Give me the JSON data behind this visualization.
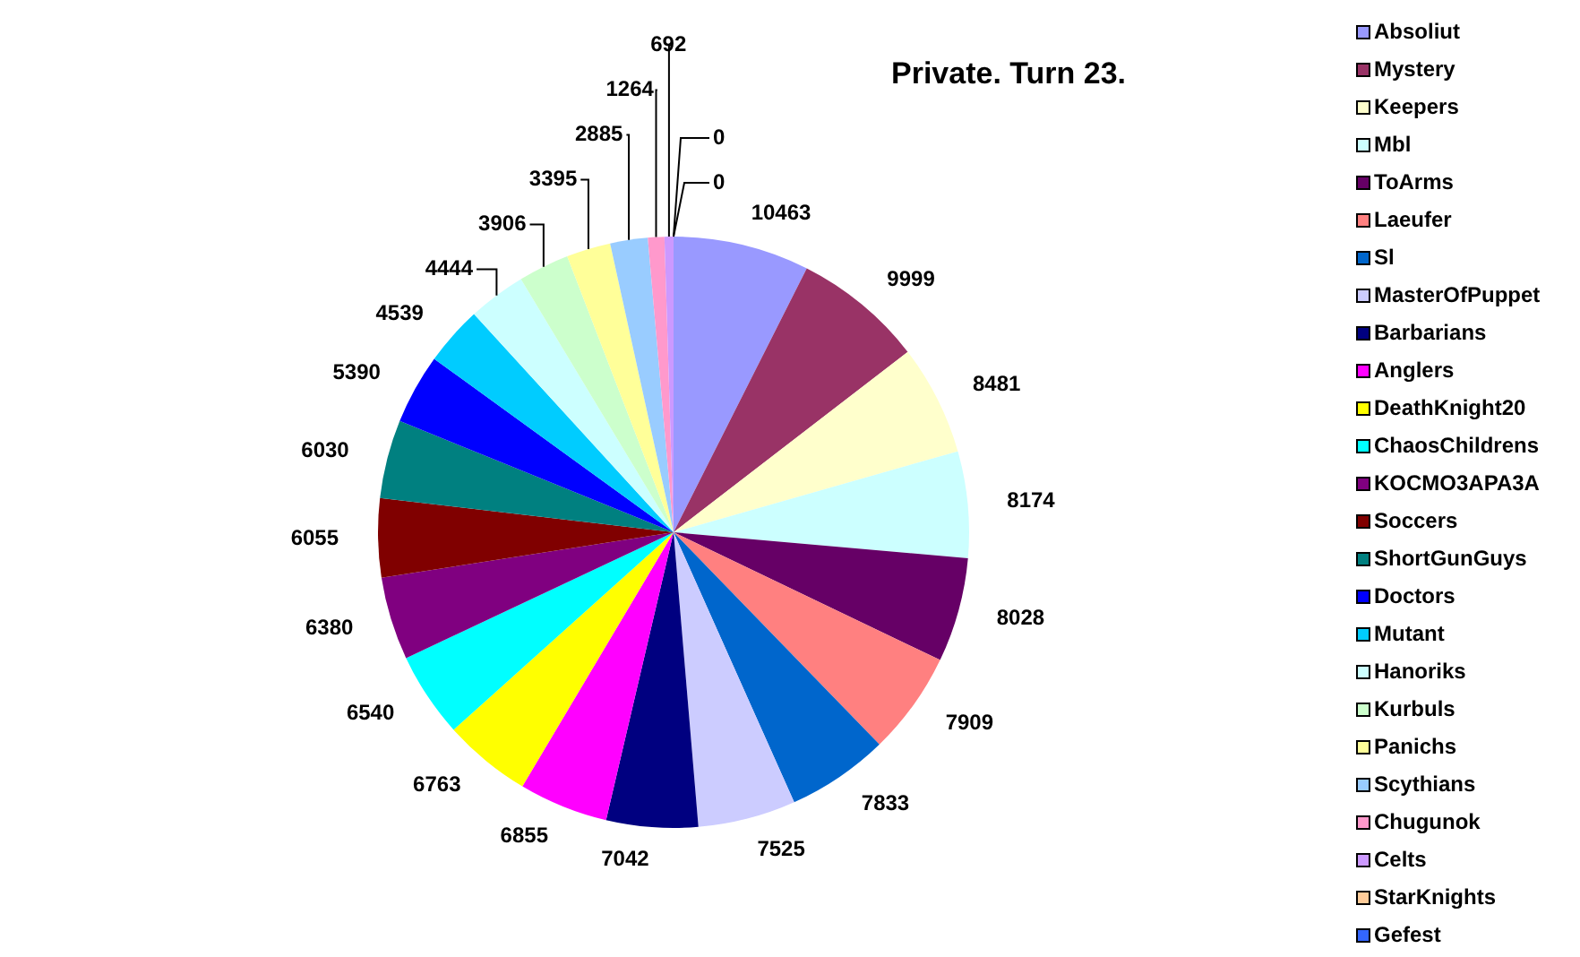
{
  "chart_data": {
    "type": "pie",
    "title": "Private. Turn 23.",
    "categories": [
      "Absoliut",
      "Mystery",
      "Keepers",
      "Mbl",
      "ToArms",
      "Laeufer",
      "Sl",
      "MasterOfPuppet",
      "Barbarians",
      "Anglers",
      "DeathKnight20",
      "ChaosChildrens",
      "KOCMO3APA3A",
      "Soccers",
      "ShortGunGuys",
      "Doctors",
      "Mutant",
      "Hanoriks",
      "Kurbuls",
      "Panichs",
      "Scythians",
      "Chugunok",
      "Celts",
      "StarKnights",
      "Gefest"
    ],
    "values": [
      10463,
      9999,
      8481,
      8174,
      8028,
      7909,
      7833,
      7525,
      7042,
      6855,
      6763,
      6540,
      6380,
      6055,
      6030,
      5390,
      4539,
      4444,
      3906,
      3395,
      2885,
      1264,
      692,
      0,
      0
    ],
    "colors": [
      "#9999ff",
      "#993366",
      "#ffffcc",
      "#ccffff",
      "#660066",
      "#ff8080",
      "#0066cc",
      "#ccccff",
      "#000080",
      "#ff00ff",
      "#ffff00",
      "#00ffff",
      "#800080",
      "#800000",
      "#008080",
      "#0000ff",
      "#00ccff",
      "#ccffff",
      "#ccffcc",
      "#ffff99",
      "#99ccff",
      "#ff99cc",
      "#cc99ff",
      "#ffcc99",
      "#3366ff"
    ],
    "value_labels": [
      "10463",
      "9999",
      "8481",
      "8174",
      "8028",
      "7909",
      "7833",
      "7525",
      "7042",
      "6855",
      "6763",
      "6540",
      "6380",
      "6055",
      "6030",
      "5390",
      "4539",
      "4444",
      "3906",
      "3395",
      "2885",
      "1264",
      "692",
      "0",
      "0"
    ],
    "legend": "right"
  }
}
